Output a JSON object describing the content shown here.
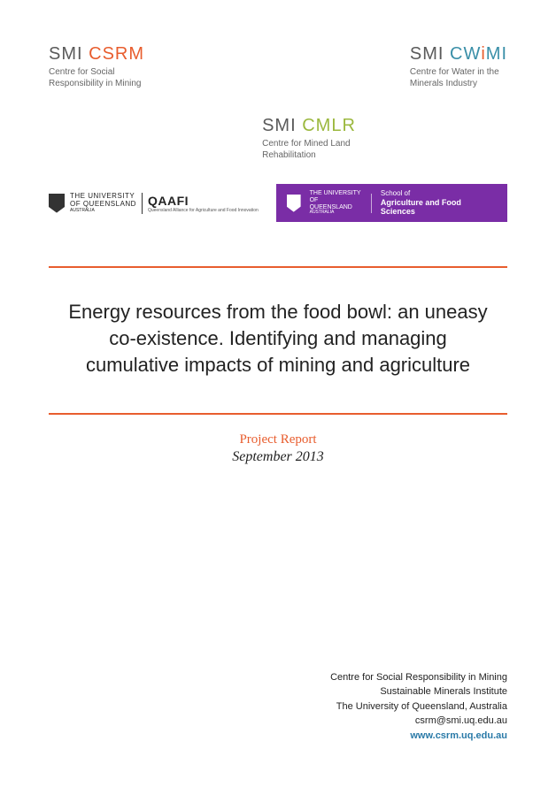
{
  "logos": {
    "csrm": {
      "brand_prefix": "SMI",
      "brand_main": "CSRM",
      "subtitle_l1": "Centre for Social",
      "subtitle_l2": "Responsibility in Mining"
    },
    "cwimi": {
      "brand_prefix": "SMI",
      "brand_cw": "CW",
      "brand_i": "i",
      "brand_mi": "MI",
      "subtitle_l1": "Centre for Water in the",
      "subtitle_l2": "Minerals Industry"
    },
    "cmlr": {
      "brand_prefix": "SMI",
      "brand_main": "CMLR",
      "subtitle_l1": "Centre for Mined Land",
      "subtitle_l2": "Rehabilitation"
    },
    "qaafi": {
      "uq_l1": "THE UNIVERSITY",
      "uq_l2": "OF QUEENSLAND",
      "uq_l3": "AUSTRALIA",
      "word": "QAAFI",
      "sub": "Queensland Alliance for Agriculture and Food Innovation"
    },
    "purple": {
      "uq_l1": "THE UNIVERSITY",
      "uq_l2": "OF QUEENSLAND",
      "uq_l3": "AUSTRALIA",
      "school_l1": "School of",
      "school_l2": "Agriculture and Food Sciences"
    }
  },
  "title": "Energy resources from the food bowl: an uneasy co-existence. Identifying and managing cumulative impacts of mining and agriculture",
  "report_label": "Project Report",
  "report_date": "September 2013",
  "footer": {
    "l1": "Centre for Social Responsibility in Mining",
    "l2": "Sustainable Minerals Institute",
    "l3": "The University of Queensland, Australia",
    "l4": "csrm@smi.uq.edu.au",
    "l5": "www.csrm.uq.edu.au"
  },
  "colors": {
    "orange": "#e85d2e",
    "teal": "#3a8fa8",
    "green": "#9bb83e",
    "purple": "#7a2da6",
    "link": "#2a7aa8"
  }
}
